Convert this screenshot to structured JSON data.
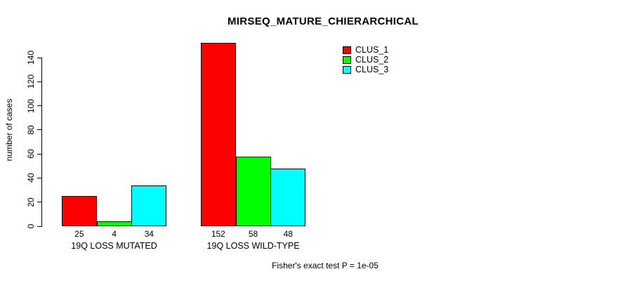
{
  "chart_data": {
    "type": "bar",
    "title": "MIRSEQ_MATURE_CHIERARCHICAL",
    "ylabel": "number of cases",
    "xlabel": "",
    "categories": [
      "19Q LOSS MUTATED",
      "19Q LOSS WILD-TYPE"
    ],
    "series": [
      {
        "name": "CLUS_1",
        "color": "#ff0000",
        "values": [
          25,
          152
        ]
      },
      {
        "name": "CLUS_2",
        "color": "#00ff00",
        "values": [
          4,
          58
        ]
      },
      {
        "name": "CLUS_3",
        "color": "#00ffff",
        "values": [
          34,
          48
        ]
      }
    ],
    "bar_value_labels": [
      [
        "25",
        "4",
        "34"
      ],
      [
        "152",
        "58",
        "48"
      ]
    ],
    "yticks": [
      0,
      20,
      40,
      60,
      80,
      100,
      120,
      140
    ],
    "ylim": [
      0,
      155
    ],
    "grid": false,
    "legend_position": "top-right",
    "bar_border_color": "#000000",
    "footnote": "Fisher's exact test P = 1e-05"
  }
}
